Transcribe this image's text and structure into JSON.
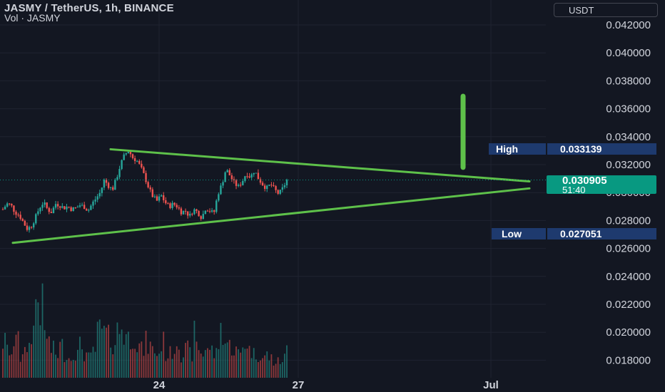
{
  "header": {
    "title": "JASMY / TetherUS, 1h, BINANCE",
    "volume_label": "Vol · JASMY"
  },
  "currency_button": "USDT",
  "price_axis": {
    "ticks": [
      "0.042000",
      "0.040000",
      "0.038000",
      "0.036000",
      "0.034000",
      "0.032000",
      "0.030000",
      "0.028000",
      "0.026000",
      "0.024000",
      "0.022000",
      "0.020000",
      "0.018000"
    ]
  },
  "time_axis": {
    "ticks": [
      "24",
      "27",
      "Jul"
    ]
  },
  "high_label": {
    "name": "High",
    "value": "0.033139"
  },
  "low_label": {
    "name": "Low",
    "value": "0.027051"
  },
  "last_price": {
    "value": "0.030905",
    "countdown": "51:40"
  },
  "colors": {
    "background": "#131722",
    "up": "#26a69a",
    "down": "#ef5350",
    "drawing": "#5ec14a",
    "last_price_tag": "#089981",
    "label_bg": "#1e3a6e"
  },
  "chart_data": {
    "type": "candlestick",
    "symbol": "JASMY / TetherUS",
    "interval": "1h",
    "exchange": "BINANCE",
    "y_range": [
      0.0172,
      0.0432
    ],
    "x_ticks": [
      "24",
      "27",
      "Jul"
    ],
    "close_path": [
      0.0288,
      0.0292,
      0.0291,
      0.0286,
      0.0284,
      0.0279,
      0.0274,
      0.0276,
      0.0282,
      0.0289,
      0.0293,
      0.0288,
      0.0286,
      0.0292,
      0.0291,
      0.0289,
      0.029,
      0.0288,
      0.0289,
      0.0291,
      0.029,
      0.0287,
      0.0292,
      0.0296,
      0.03,
      0.0309,
      0.0305,
      0.0302,
      0.031,
      0.032,
      0.0327,
      0.033,
      0.0325,
      0.0323,
      0.0318,
      0.0311,
      0.0303,
      0.0297,
      0.0294,
      0.0298,
      0.0293,
      0.029,
      0.0292,
      0.029,
      0.0286,
      0.0287,
      0.0283,
      0.0288,
      0.0286,
      0.0282,
      0.0289,
      0.0287,
      0.0285,
      0.0299,
      0.0306,
      0.0317,
      0.0312,
      0.0307,
      0.0304,
      0.0308,
      0.0314,
      0.0311,
      0.0316,
      0.031,
      0.0306,
      0.0303,
      0.0306,
      0.0302,
      0.0299,
      0.0303,
      0.0309
    ],
    "series_high": 0.033139,
    "series_low": 0.027051,
    "last_price": 0.030905,
    "trendlines": [
      {
        "name": "upper",
        "from": [
          0.0331,
          0
        ],
        "to": [
          0.0308,
          1
        ]
      },
      {
        "name": "lower",
        "from": [
          0.0264,
          0
        ],
        "to": [
          0.0303,
          1
        ]
      },
      {
        "name": "vertical-marker",
        "from": [
          0.0369,
          0
        ],
        "to": [
          0.0318,
          0
        ]
      }
    ],
    "volume_relative": [
      0.45,
      0.35,
      0.3,
      0.7,
      0.25,
      0.3,
      0.4,
      0.6,
      1.0,
      0.9,
      0.55,
      0.45,
      0.35,
      0.3,
      0.4,
      0.3,
      0.25,
      0.35,
      0.3,
      0.4,
      0.3,
      0.25,
      0.35,
      0.55,
      0.6,
      0.55,
      0.5,
      0.45,
      0.6,
      0.65,
      0.55,
      0.5,
      0.55,
      0.4,
      0.35,
      0.45,
      0.4,
      0.35,
      0.3,
      0.45,
      0.3,
      0.3,
      0.35,
      0.5,
      0.3,
      0.35,
      0.3,
      0.55,
      0.4,
      0.3,
      0.4,
      0.35,
      0.3,
      0.45,
      0.6,
      0.45,
      0.4,
      0.35,
      0.3,
      0.4,
      0.45,
      0.35,
      0.3,
      0.3,
      0.25,
      0.3,
      0.25,
      0.2,
      0.2,
      0.25,
      0.35
    ]
  }
}
